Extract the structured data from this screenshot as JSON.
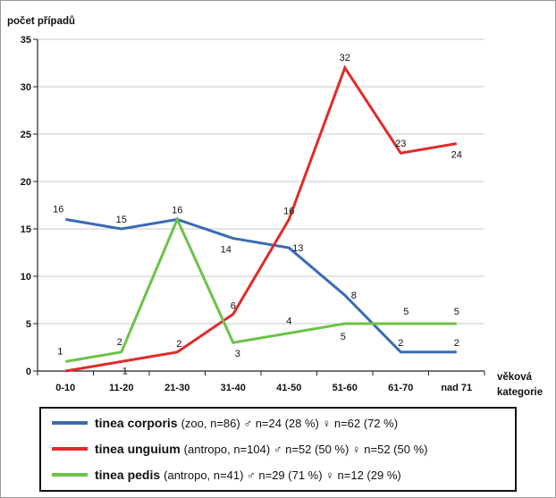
{
  "chart_data": {
    "type": "line",
    "ylabel": "počet případů",
    "xlabel_line1": "věková",
    "xlabel_line2": "kategorie",
    "categories": [
      "0-10",
      "11-20",
      "21-30",
      "31-40",
      "41-50",
      "51-60",
      "61-70",
      "nad 71"
    ],
    "ylim": [
      0,
      35
    ],
    "yticks": [
      0,
      5,
      10,
      15,
      20,
      25,
      30,
      35
    ],
    "grid": true,
    "series": [
      {
        "name": "tinea corporis",
        "color": "#3a6bb5",
        "values": [
          16,
          15,
          16,
          14,
          13,
          8,
          2,
          2
        ]
      },
      {
        "name": "tinea unguium",
        "color": "#e02b2b",
        "values": [
          0,
          1,
          2,
          6,
          16,
          32,
          23,
          24
        ]
      },
      {
        "name": "tinea pedis",
        "color": "#6dc247",
        "values": [
          1,
          2,
          16,
          3,
          4,
          5,
          5,
          5
        ]
      }
    ],
    "legend": {
      "placement": "bottom",
      "entries": [
        {
          "name": "tinea corporis",
          "detail": "(zoo, n=86) ♂ n=24 (28 %) ♀ n=62 (72 %)",
          "color": "#3a6bb5"
        },
        {
          "name": "tinea unguium",
          "detail": "(antropo, n=104) ♂ n=52 (50 %) ♀ n=52 (50 %)",
          "color": "#e02b2b"
        },
        {
          "name": "tinea pedis",
          "detail": "(antropo, n=41) ♂ n=29 (71 %) ♀ n=12 (29 %)",
          "color": "#6dc247"
        }
      ]
    }
  }
}
